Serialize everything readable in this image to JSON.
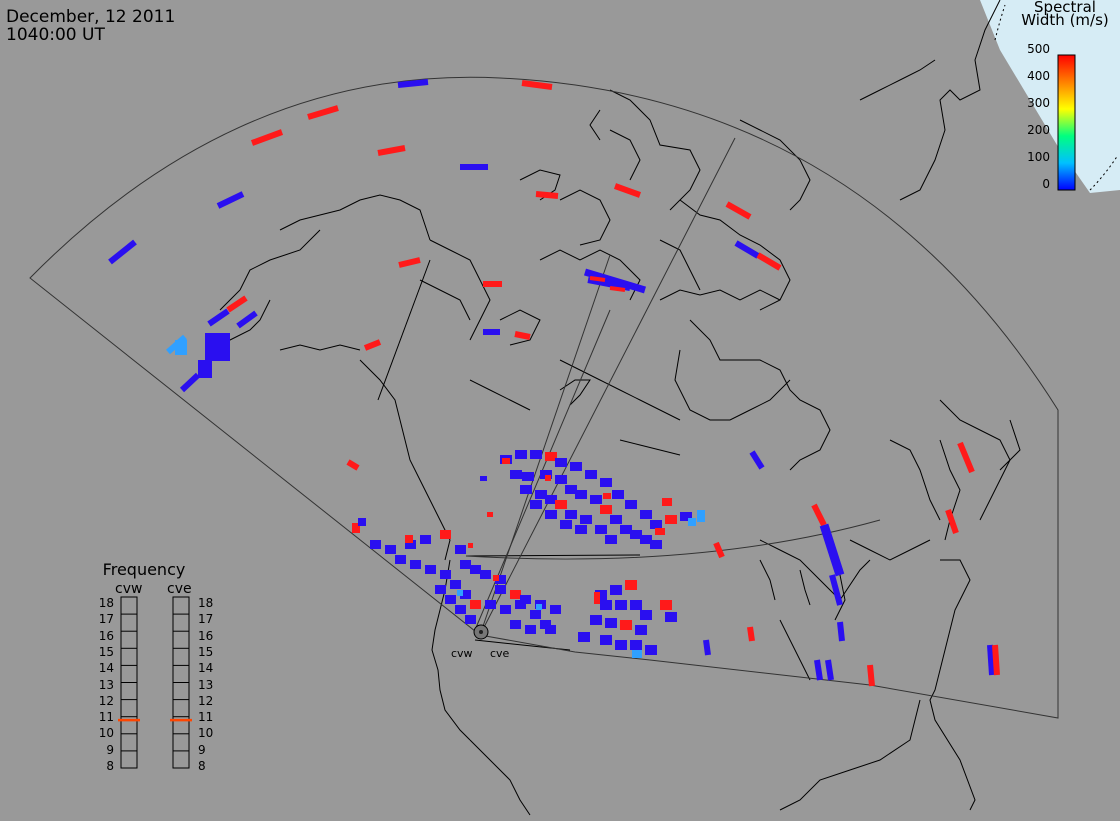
{
  "title": {
    "date": "December, 12 2011",
    "time": "1040:00 UT"
  },
  "colorbar": {
    "title_line1": "Spectral",
    "title_line2": "Width (m/s)",
    "ticks": [
      "500",
      "400",
      "300",
      "200",
      "100",
      "0"
    ],
    "range": [
      0,
      500
    ],
    "colors": [
      "#0000ff",
      "#00c0ff",
      "#00ff80",
      "#ffff00",
      "#ff8000",
      "#ff0000"
    ]
  },
  "frequency_panel": {
    "title": "Frequency",
    "radars": [
      "cvw",
      "cve"
    ],
    "ticks": [
      "18",
      "17",
      "16",
      "15",
      "14",
      "13",
      "12",
      "11",
      "10",
      "9",
      "8"
    ],
    "current_freq_mhz": {
      "cvw": 10.8,
      "cve": 10.8
    },
    "marker_color": "#ff4500"
  },
  "radar_site": {
    "labels": [
      "cvw",
      "cve"
    ]
  },
  "map": {
    "background": "#999999",
    "ocean_cap": "#d6ecf5",
    "land_outline": "#000000",
    "fov_outline": "#333333"
  }
}
